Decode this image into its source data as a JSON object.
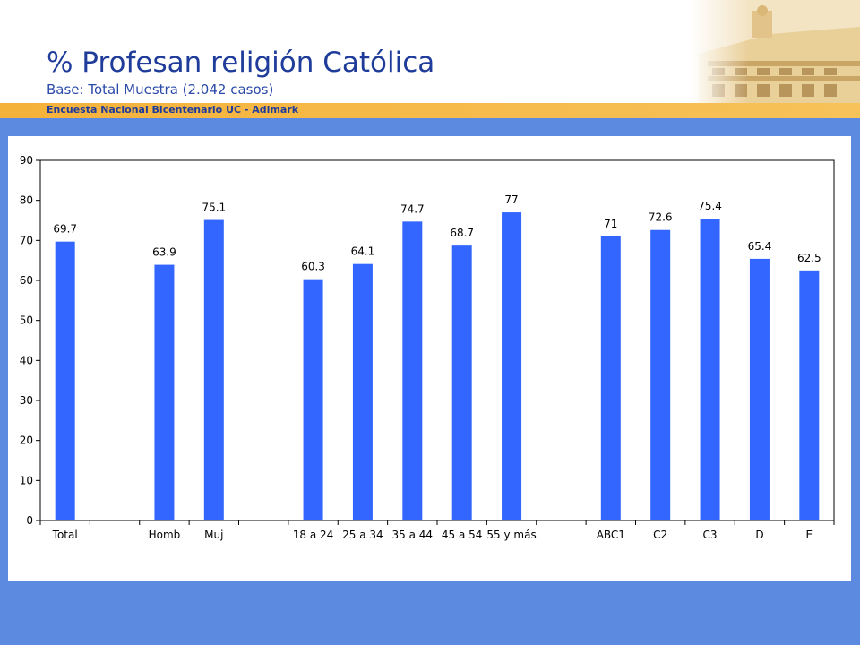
{
  "slide": {
    "title": "% Profesan religión Católica",
    "subtitle": "Base: Total Muestra (2.042 casos)",
    "band_text": "Encuesta Nacional Bicentenario UC - Adimark"
  },
  "colors": {
    "bar": "#3366ff",
    "background": "#5b8ae0",
    "band": "#f5b23a",
    "title": "#1f3c9a"
  },
  "chart_data": {
    "type": "bar",
    "title": "",
    "xlabel": "",
    "ylabel": "",
    "ylim": [
      0,
      90
    ],
    "yticks": [
      0,
      10,
      20,
      30,
      40,
      50,
      60,
      70,
      80,
      90
    ],
    "grid": false,
    "legend": "none",
    "categories": [
      "Total",
      "",
      "Homb",
      "Muj",
      "",
      "18 a 24",
      "25 a 34",
      "35 a 44",
      "45 a 54",
      "55 y más",
      "",
      "ABC1",
      "C2",
      "C3",
      "D",
      "E"
    ],
    "values": [
      69.7,
      null,
      63.9,
      75.1,
      null,
      60.3,
      64.1,
      74.7,
      68.7,
      77,
      null,
      71,
      72.6,
      75.4,
      65.4,
      62.5
    ],
    "labels": [
      "69.7",
      "",
      "63.9",
      "75.1",
      "",
      "60.3",
      "64.1",
      "74.7",
      "68.7",
      "77",
      "",
      "71",
      "72.6",
      "75.4",
      "65.4",
      "62.5"
    ]
  }
}
